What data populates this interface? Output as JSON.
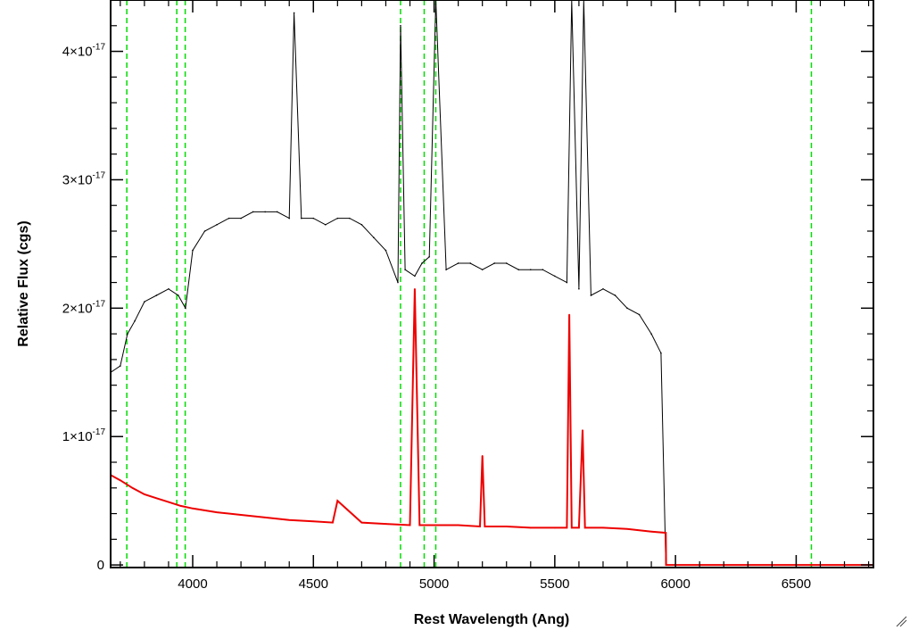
{
  "chart_data": {
    "type": "line",
    "xlabel": "Rest Wavelength (Ang)",
    "ylabel": "Relative Flux (cgs)",
    "xlim": [
      3660,
      6820
    ],
    "ylim": [
      -2e-19,
      4.4e-17
    ],
    "x_ticks": [
      4000,
      4500,
      5000,
      5500,
      6000,
      6500
    ],
    "x_tick_labels": [
      "4000",
      "4500",
      "5000",
      "5500",
      "6000",
      "6500"
    ],
    "y_ticks": [
      0,
      1e-17,
      2e-17,
      3e-17,
      4e-17
    ],
    "y_tick_labels": [
      {
        "mantissa": "0",
        "exponent": ""
      },
      {
        "mantissa": "1×10",
        "exponent": "-17"
      },
      {
        "mantissa": "2×10",
        "exponent": "-17"
      },
      {
        "mantissa": "3×10",
        "exponent": "-17"
      },
      {
        "mantissa": "4×10",
        "exponent": "-17"
      }
    ],
    "grid": false,
    "series": [
      {
        "color": "#000000",
        "style": "solid",
        "x": [
          3660,
          3700,
          3730,
          3760,
          3800,
          3850,
          3900,
          3940,
          3970,
          4000,
          4050,
          4100,
          4150,
          4200,
          4250,
          4300,
          4350,
          4400,
          4420,
          4450,
          4500,
          4550,
          4600,
          4650,
          4700,
          4750,
          4800,
          4850,
          4861,
          4880,
          4920,
          4950,
          4980,
          5007,
          5050,
          5100,
          5150,
          5200,
          5250,
          5300,
          5350,
          5400,
          5450,
          5500,
          5550,
          5570,
          5600,
          5620,
          5650,
          5700,
          5750,
          5800,
          5850,
          5900,
          5940,
          5960,
          6000,
          6500,
          6820
        ],
        "y": [
          1.5e-17,
          1.55e-17,
          1.8e-17,
          1.9e-17,
          2.05e-17,
          2.1e-17,
          2.15e-17,
          2.1e-17,
          2e-17,
          2.45e-17,
          2.6e-17,
          2.65e-17,
          2.7e-17,
          2.7e-17,
          2.75e-17,
          2.75e-17,
          2.75e-17,
          2.7e-17,
          4.3e-17,
          2.7e-17,
          2.7e-17,
          2.65e-17,
          2.7e-17,
          2.7e-17,
          2.65e-17,
          2.55e-17,
          2.45e-17,
          2.2e-17,
          4.2e-17,
          2.3e-17,
          2.25e-17,
          2.35e-17,
          2.4e-17,
          4.4e-17,
          2.3e-17,
          2.35e-17,
          2.35e-17,
          2.3e-17,
          2.35e-17,
          2.35e-17,
          2.3e-17,
          2.3e-17,
          2.3e-17,
          2.25e-17,
          2.2e-17,
          4.4e-17,
          2.15e-17,
          4.4e-17,
          2.1e-17,
          2.15e-17,
          2.1e-17,
          2e-17,
          1.95e-17,
          1.8e-17,
          1.65e-17,
          0,
          0,
          0,
          0
        ]
      },
      {
        "color": "#ee0000",
        "style": "solid",
        "x": [
          3660,
          3700,
          3750,
          3800,
          3850,
          3900,
          3950,
          4000,
          4100,
          4200,
          4300,
          4400,
          4500,
          4580,
          4600,
          4700,
          4800,
          4900,
          4920,
          4940,
          5000,
          5100,
          5190,
          5200,
          5210,
          5300,
          5400,
          5500,
          5550,
          5560,
          5570,
          5600,
          5615,
          5625,
          5700,
          5800,
          5900,
          5960,
          5961,
          6500,
          6820
        ],
        "y": [
          7e-18,
          6.6e-18,
          6e-18,
          5.5e-18,
          5.2e-18,
          4.9e-18,
          4.6e-18,
          4.4e-18,
          4.1e-18,
          3.9e-18,
          3.7e-18,
          3.5e-18,
          3.4e-18,
          3.3e-18,
          5e-18,
          3.3e-18,
          3.2e-18,
          3.1e-18,
          2.15e-17,
          3.1e-18,
          3.1e-18,
          3.1e-18,
          3e-18,
          8.5e-18,
          3e-18,
          3e-18,
          2.9e-18,
          2.9e-18,
          2.9e-18,
          1.95e-17,
          2.9e-18,
          2.9e-18,
          1.05e-17,
          2.9e-18,
          2.9e-18,
          2.8e-18,
          2.6e-18,
          2.5e-18,
          0,
          0,
          0
        ]
      }
    ],
    "reference_lines": {
      "color": "#00dd00",
      "style": "dashed",
      "x": [
        3727,
        3934,
        3969,
        4861,
        4959,
        5007,
        6563
      ]
    }
  }
}
